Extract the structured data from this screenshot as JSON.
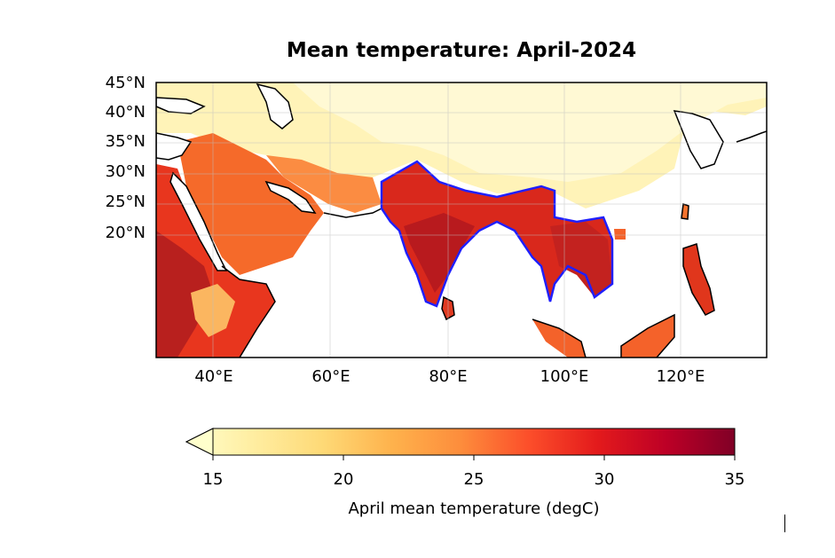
{
  "map": {
    "title": "Mean temperature: April-2024",
    "lat_labels": [
      "45°N",
      "40°N",
      "35°N",
      "30°N",
      "25°N",
      "20°N"
    ],
    "lon_labels": [
      "40°E",
      "60°E",
      "80°E",
      "100°E",
      "120°E"
    ],
    "extent": {
      "lon_min": 30,
      "lon_max": 135,
      "lat_min": 0,
      "lat_max": 45
    },
    "highlight_outline_color": "#1f1fff",
    "coastline_color": "#000000",
    "grid": true
  },
  "colorbar": {
    "label": "April mean temperature (degC)",
    "ticks": [
      "15",
      "20",
      "25",
      "30",
      "35"
    ],
    "min": 15,
    "max": 35,
    "extend": "min",
    "colormap": "YlOrRd",
    "colors": [
      "#ffffcc",
      "#ffeda0",
      "#fed976",
      "#feb24c",
      "#fd8d3c",
      "#fc4e2a",
      "#e31a1c",
      "#bd0026",
      "#800026"
    ]
  }
}
